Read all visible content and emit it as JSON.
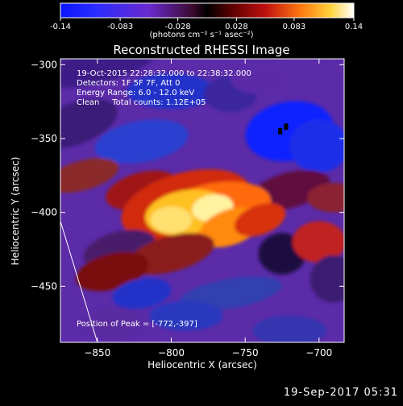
{
  "title": "Reconstructed RHESSI Image",
  "colorbar": {
    "ticks": [
      "-0.14",
      "-0.083",
      "-0.028",
      "0.028",
      "0.083",
      "0.14"
    ],
    "values": [
      -0.14,
      -0.083,
      -0.028,
      0.028,
      0.083,
      0.14
    ],
    "unit_label": "(photons cm⁻² s⁻¹ asec⁻²)"
  },
  "annotations": {
    "observation_time": "19-Oct-2015 22:28:32.000 to 22:38:32.000",
    "detectors": "Detectors: 1F 5F 7F, Att 0",
    "energy_range": "Energy Range: 6.0 - 12.0 keV",
    "clean": "Clean     Total counts: 1.12E+05",
    "peak": "Position of Peak = [-772,-397]"
  },
  "footer_timestamp": "19-Sep-2017 05:31",
  "chart_data": {
    "type": "heatmap",
    "title": "Reconstructed RHESSI Image",
    "xlabel": "Heliocentric X (arcsec)",
    "ylabel": "Heliocentric Y (arcsec)",
    "xlim": [
      -875,
      -683
    ],
    "ylim": [
      -488,
      -296
    ],
    "xticks": [
      -850,
      -800,
      -750,
      -700
    ],
    "yticks": [
      -300,
      -350,
      -400,
      -450
    ],
    "zlim": [
      -0.14,
      0.14
    ],
    "colormap": "blue-purple-red-yellow-white",
    "peak": {
      "x": -772,
      "y": -397
    },
    "limb_line": [
      [
        -875,
        -406
      ],
      [
        -850,
        -488
      ]
    ],
    "grid": false
  }
}
